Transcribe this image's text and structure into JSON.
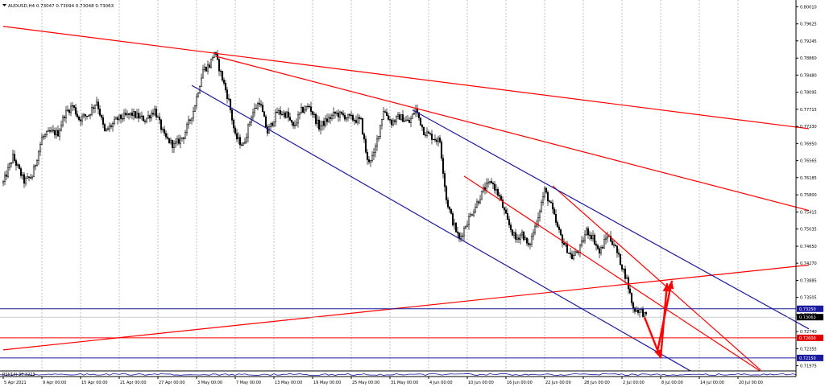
{
  "header": {
    "symbol_line": "AUDUSD,H4  0.73047 0.73094 0.73048 0.73063"
  },
  "indicator_label": "RSI(14) 30.3223",
  "colors": {
    "candle": "#000000",
    "red_line": "#ff0000",
    "blue_line": "#1a1a9e",
    "grid": "#9a9a9a",
    "level_blue_box": "#1a1aa0",
    "level_red_box": "#e00000",
    "current_price_box": "#000000"
  },
  "chart_data": {
    "type": "candlestick",
    "title": "AUDUSD,H4",
    "x_tick_labels": [
      "5 Apr 2021",
      "9 Apr 00:00",
      "15 Apr 00:00",
      "21 Apr 00:00",
      "27 Apr 00:00",
      "3 May 00:00",
      "7 May 00:00",
      "13 May 00:00",
      "19 May 00:00",
      "25 May 00:00",
      "31 May 00:00",
      "4 Jun 00:00",
      "10 Jun 00:00",
      "16 Jun 00:00",
      "22 Jun 00:00",
      "28 Jun 00:00",
      "2 Jul 00:00",
      "8 Jul 00:00",
      "14 Jul 00:00",
      "20 Jul 00:00"
    ],
    "y_tick_labels": [
      "0.80010",
      "0.79625",
      "0.79245",
      "0.78860",
      "0.78480",
      "0.78095",
      "0.77715",
      "0.77330",
      "0.76950",
      "0.76565",
      "0.76185",
      "0.75800",
      "0.75415",
      "0.75035",
      "0.74650",
      "0.74270",
      "0.73885",
      "0.73505",
      "0.73120",
      "0.72740",
      "0.72355",
      "0.71975"
    ],
    "ylim": [
      0.7186,
      0.8016
    ],
    "price_path": [
      [
        0,
        0.7607
      ],
      [
        6,
        0.7665
      ],
      [
        13,
        0.761
      ],
      [
        18,
        0.7622
      ],
      [
        24,
        0.7707
      ],
      [
        29,
        0.772
      ],
      [
        34,
        0.7718
      ],
      [
        38,
        0.776
      ],
      [
        43,
        0.778
      ],
      [
        47,
        0.775
      ],
      [
        53,
        0.776
      ],
      [
        58,
        0.779
      ],
      [
        63,
        0.772
      ],
      [
        71,
        0.775
      ],
      [
        80,
        0.7761
      ],
      [
        88,
        0.7748
      ],
      [
        94,
        0.777
      ],
      [
        100,
        0.771
      ],
      [
        106,
        0.769
      ],
      [
        112,
        0.7712
      ],
      [
        118,
        0.7768
      ],
      [
        124,
        0.786
      ],
      [
        128,
        0.787
      ],
      [
        131,
        0.79
      ],
      [
        136,
        0.784
      ],
      [
        140,
        0.779
      ],
      [
        144,
        0.771
      ],
      [
        149,
        0.769
      ],
      [
        154,
        0.7758
      ],
      [
        159,
        0.779
      ],
      [
        164,
        0.772
      ],
      [
        170,
        0.7765
      ],
      [
        176,
        0.776
      ],
      [
        180,
        0.773
      ],
      [
        185,
        0.7768
      ],
      [
        190,
        0.7778
      ],
      [
        196,
        0.7732
      ],
      [
        200,
        0.7744
      ],
      [
        206,
        0.7762
      ],
      [
        212,
        0.7756
      ],
      [
        217,
        0.775
      ],
      [
        222,
        0.7745
      ],
      [
        226,
        0.7655
      ],
      [
        230,
        0.7668
      ],
      [
        236,
        0.777
      ],
      [
        241,
        0.7742
      ],
      [
        246,
        0.7755
      ],
      [
        252,
        0.7742
      ],
      [
        256,
        0.7772
      ],
      [
        261,
        0.7722
      ],
      [
        266,
        0.771
      ],
      [
        271,
        0.77
      ],
      [
        275,
        0.757
      ],
      [
        279,
        0.752
      ],
      [
        283,
        0.748
      ],
      [
        288,
        0.752
      ],
      [
        293,
        0.7555
      ],
      [
        298,
        0.759
      ],
      [
        303,
        0.761
      ],
      [
        308,
        0.7575
      ],
      [
        313,
        0.752
      ],
      [
        318,
        0.748
      ],
      [
        322,
        0.7495
      ],
      [
        326,
        0.7462
      ],
      [
        331,
        0.752
      ],
      [
        336,
        0.759
      ],
      [
        340,
        0.7555
      ],
      [
        344,
        0.7505
      ],
      [
        348,
        0.747
      ],
      [
        353,
        0.744
      ],
      [
        358,
        0.746
      ],
      [
        362,
        0.75
      ],
      [
        366,
        0.7485
      ],
      [
        370,
        0.745
      ],
      [
        375,
        0.749
      ],
      [
        379,
        0.747
      ],
      [
        383,
        0.743
      ],
      [
        387,
        0.739
      ],
      [
        391,
        0.7325
      ],
      [
        396,
        0.732
      ],
      [
        399,
        0.7306
      ]
    ],
    "price_path_units": "x = H4 bar index (0 = 5 Apr 2021 bar); y = AUDUSD price",
    "trend_lines": [
      {
        "color": "red",
        "from": [
          0,
          0.7957
        ],
        "to": [
          500,
          0.7728
        ]
      },
      {
        "color": "red",
        "from": [
          132,
          0.789
        ],
        "to": [
          500,
          0.7545
        ]
      },
      {
        "color": "red",
        "from": [
          0,
          0.7233
        ],
        "to": [
          500,
          0.7423
        ]
      },
      {
        "color": "red",
        "from": [
          286,
          0.7622
        ],
        "to": [
          470,
          0.7185
        ]
      },
      {
        "color": "red",
        "from": [
          341,
          0.76
        ],
        "to": [
          470,
          0.7188
        ]
      },
      {
        "color": "blue",
        "from": [
          117,
          0.7825
        ],
        "to": [
          427,
          0.7185
        ]
      },
      {
        "color": "blue",
        "from": [
          254,
          0.777
        ],
        "to": [
          500,
          0.728
        ]
      }
    ],
    "horizontal_levels": [
      {
        "price": 0.7325,
        "label": "0.73250",
        "color": "blue",
        "box": true
      },
      {
        "price": 0.73063,
        "label": "0.73063",
        "color": "gray",
        "box": true,
        "current": true
      },
      {
        "price": 0.726,
        "label": "0.72600",
        "color": "red",
        "box": true
      },
      {
        "price": 0.7215,
        "label": "0.72150",
        "color": "blue",
        "box": true
      }
    ],
    "forecast_arrows": [
      {
        "from": [
          398,
          0.7306
        ],
        "to": [
          408,
          0.7215
        ]
      },
      {
        "from": [
          408,
          0.7215
        ],
        "to": [
          412,
          0.7382
        ]
      },
      {
        "from": [
          406,
          0.723
        ],
        "to": [
          415,
          0.7388
        ]
      }
    ]
  }
}
